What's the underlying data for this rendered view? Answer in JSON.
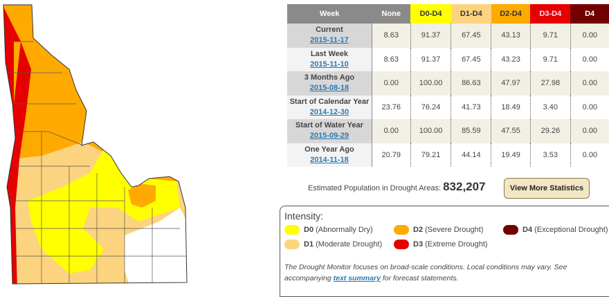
{
  "colors": {
    "none": "#ffffff",
    "D0": "#ffff00",
    "D1": "#fcd37f",
    "D2": "#ffaa00",
    "D3": "#e60000",
    "D4": "#730000",
    "header": "#8a8a8a"
  },
  "table": {
    "headers": [
      "Week",
      "None",
      "D0-D4",
      "D1-D4",
      "D2-D4",
      "D3-D4",
      "D4"
    ],
    "rows": [
      {
        "label": "Current",
        "date": "2015-11-17",
        "values": [
          "8.63",
          "91.37",
          "67.45",
          "43.13",
          "9.71",
          "0.00"
        ]
      },
      {
        "label": "Last Week",
        "date": "2015-11-10",
        "values": [
          "8.63",
          "91.37",
          "67.45",
          "43.23",
          "9.71",
          "0.00"
        ]
      },
      {
        "label": "3 Months Ago",
        "date": "2015-08-18",
        "values": [
          "0.00",
          "100.00",
          "86.63",
          "47.97",
          "27.98",
          "0.00"
        ]
      },
      {
        "label": "Start of Calendar Year",
        "date": "2014-12-30",
        "values": [
          "23.76",
          "76.24",
          "41.73",
          "18.49",
          "3.40",
          "0.00"
        ]
      },
      {
        "label": "Start of Water Year",
        "date": "2015-09-29",
        "values": [
          "0.00",
          "100.00",
          "85.59",
          "47.55",
          "29.26",
          "0.00"
        ]
      },
      {
        "label": "One Year Ago",
        "date": "2014-11-18",
        "values": [
          "20.79",
          "79.21",
          "44.14",
          "19.49",
          "3.53",
          "0.00"
        ]
      }
    ]
  },
  "population": {
    "label": "Estimated Population in Drought Areas:",
    "value": "832,207"
  },
  "stats_button": "View More Statistics",
  "legend": {
    "title": "Intensity:",
    "items": [
      {
        "code": "D0",
        "desc": "(Abnormally Dry)"
      },
      {
        "code": "D1",
        "desc": "(Moderate Drought)"
      },
      {
        "code": "D2",
        "desc": "(Severe Drought)"
      },
      {
        "code": "D3",
        "desc": "(Extreme Drought)"
      },
      {
        "code": "D4",
        "desc": "(Exceptional Drought)"
      }
    ]
  },
  "note": {
    "before": "The Drought Monitor focuses on broad-scale conditions. Local conditions may vary. See accompanying ",
    "link": "text summary",
    "after": " for forecast statements."
  }
}
